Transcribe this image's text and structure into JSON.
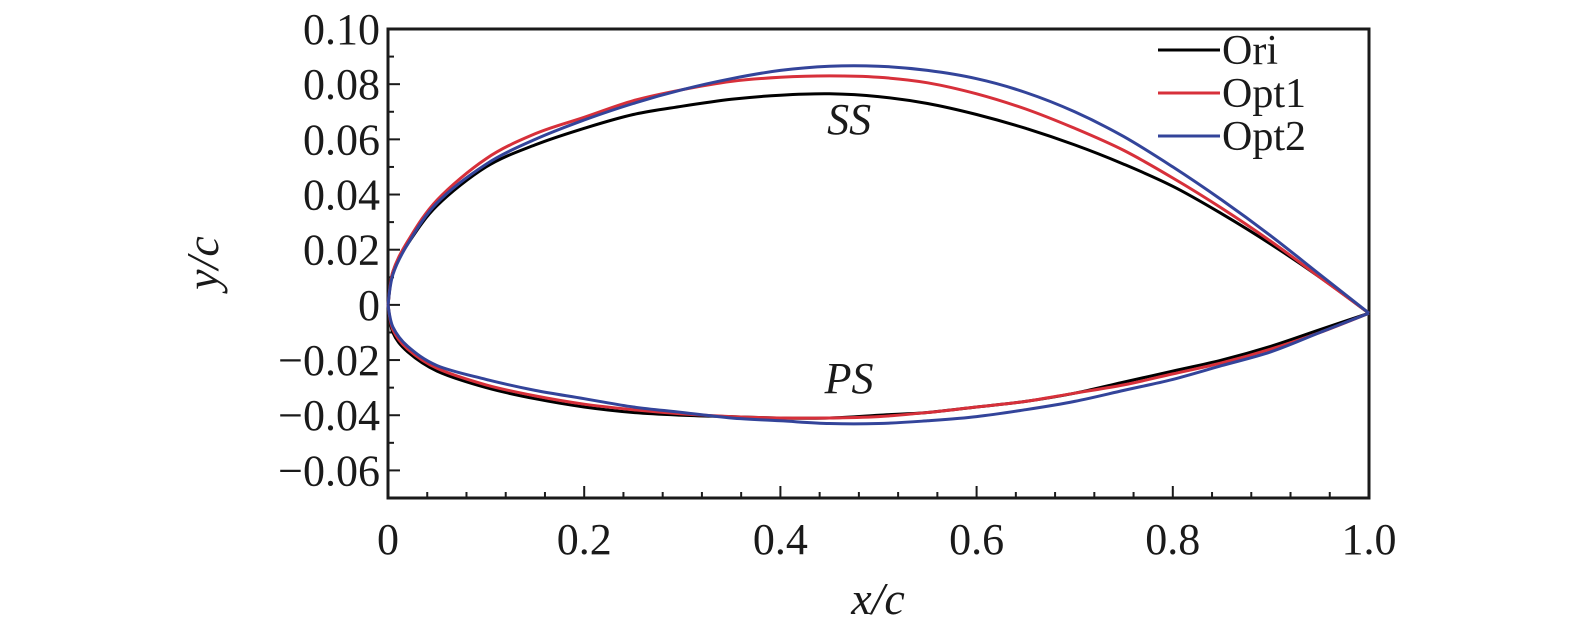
{
  "chart_data": {
    "type": "line",
    "xlabel": "x/c",
    "ylabel": "y/c",
    "xlim": [
      0,
      1.0
    ],
    "ylim": [
      -0.07,
      0.1
    ],
    "xticks": [
      0,
      0.2,
      0.4,
      0.6,
      0.8,
      1.0
    ],
    "xtick_labels": [
      "0",
      "0.2",
      "0.4",
      "0.6",
      "0.8",
      "1.0"
    ],
    "yticks": [
      0.1,
      0.08,
      0.06,
      0.04,
      0.02,
      0,
      -0.02,
      -0.04,
      -0.06
    ],
    "ytick_labels": [
      "0.10",
      "0.08",
      "0.06",
      "0.04",
      "0.02",
      "0",
      "−0.02",
      "−0.04",
      "−0.06"
    ],
    "legend_position": "top-right",
    "grid": false,
    "annotations": [
      {
        "text": "SS",
        "x": 0.47,
        "y": 0.062
      },
      {
        "text": "PS",
        "x": 0.47,
        "y": -0.032
      }
    ],
    "series": [
      {
        "name": "Ori",
        "color": "#000000",
        "upper": {
          "x": [
            0,
            0.005,
            0.02,
            0.05,
            0.1,
            0.15,
            0.2,
            0.25,
            0.3,
            0.35,
            0.4,
            0.45,
            0.5,
            0.55,
            0.6,
            0.65,
            0.7,
            0.75,
            0.8,
            0.85,
            0.9,
            0.95,
            1.0
          ],
          "y": [
            0.0,
            0.012,
            0.022,
            0.036,
            0.05,
            0.058,
            0.064,
            0.069,
            0.072,
            0.0745,
            0.076,
            0.0765,
            0.0755,
            0.073,
            0.069,
            0.064,
            0.058,
            0.051,
            0.043,
            0.033,
            0.022,
            0.01,
            -0.003
          ]
        },
        "lower": {
          "x": [
            0,
            0.005,
            0.02,
            0.05,
            0.1,
            0.15,
            0.2,
            0.25,
            0.3,
            0.35,
            0.4,
            0.45,
            0.5,
            0.55,
            0.6,
            0.65,
            0.7,
            0.75,
            0.8,
            0.85,
            0.9,
            0.95,
            1.0
          ],
          "y": [
            0.0,
            -0.01,
            -0.017,
            -0.024,
            -0.03,
            -0.034,
            -0.037,
            -0.039,
            -0.04,
            -0.0405,
            -0.041,
            -0.041,
            -0.04,
            -0.039,
            -0.037,
            -0.035,
            -0.032,
            -0.028,
            -0.024,
            -0.02,
            -0.015,
            -0.009,
            -0.003
          ]
        }
      },
      {
        "name": "Opt1",
        "color": "#d7303a",
        "upper": {
          "x": [
            0,
            0.005,
            0.02,
            0.05,
            0.1,
            0.15,
            0.2,
            0.25,
            0.3,
            0.35,
            0.4,
            0.45,
            0.5,
            0.55,
            0.6,
            0.65,
            0.7,
            0.75,
            0.8,
            0.85,
            0.9,
            0.95,
            1.0
          ],
          "y": [
            0.0,
            0.012,
            0.023,
            0.038,
            0.053,
            0.062,
            0.068,
            0.074,
            0.078,
            0.081,
            0.0825,
            0.083,
            0.0825,
            0.0805,
            0.0765,
            0.071,
            0.064,
            0.056,
            0.046,
            0.035,
            0.023,
            0.01,
            -0.003
          ]
        },
        "lower": {
          "x": [
            0,
            0.005,
            0.02,
            0.05,
            0.1,
            0.15,
            0.2,
            0.25,
            0.3,
            0.35,
            0.4,
            0.45,
            0.5,
            0.55,
            0.6,
            0.65,
            0.7,
            0.75,
            0.8,
            0.85,
            0.9,
            0.95,
            1.0
          ],
          "y": [
            0.0,
            -0.009,
            -0.016,
            -0.023,
            -0.029,
            -0.033,
            -0.036,
            -0.038,
            -0.0395,
            -0.0405,
            -0.041,
            -0.041,
            -0.0405,
            -0.039,
            -0.037,
            -0.035,
            -0.032,
            -0.029,
            -0.025,
            -0.021,
            -0.016,
            -0.01,
            -0.003
          ]
        }
      },
      {
        "name": "Opt2",
        "color": "#33449a",
        "upper": {
          "x": [
            0,
            0.005,
            0.02,
            0.05,
            0.1,
            0.15,
            0.2,
            0.25,
            0.3,
            0.35,
            0.4,
            0.45,
            0.5,
            0.55,
            0.6,
            0.65,
            0.7,
            0.75,
            0.8,
            0.85,
            0.9,
            0.95,
            1.0
          ],
          "y": [
            0.0,
            0.011,
            0.022,
            0.037,
            0.051,
            0.06,
            0.067,
            0.073,
            0.078,
            0.082,
            0.085,
            0.0865,
            0.0865,
            0.085,
            0.082,
            0.077,
            0.07,
            0.061,
            0.05,
            0.038,
            0.025,
            0.011,
            -0.003
          ]
        },
        "lower": {
          "x": [
            0,
            0.005,
            0.02,
            0.05,
            0.1,
            0.15,
            0.2,
            0.25,
            0.3,
            0.35,
            0.4,
            0.45,
            0.5,
            0.55,
            0.6,
            0.65,
            0.7,
            0.75,
            0.8,
            0.85,
            0.9,
            0.95,
            1.0
          ],
          "y": [
            0.0,
            -0.008,
            -0.015,
            -0.022,
            -0.027,
            -0.031,
            -0.034,
            -0.037,
            -0.039,
            -0.041,
            -0.042,
            -0.043,
            -0.043,
            -0.042,
            -0.0405,
            -0.038,
            -0.035,
            -0.031,
            -0.027,
            -0.022,
            -0.017,
            -0.01,
            -0.003
          ]
        }
      }
    ]
  }
}
